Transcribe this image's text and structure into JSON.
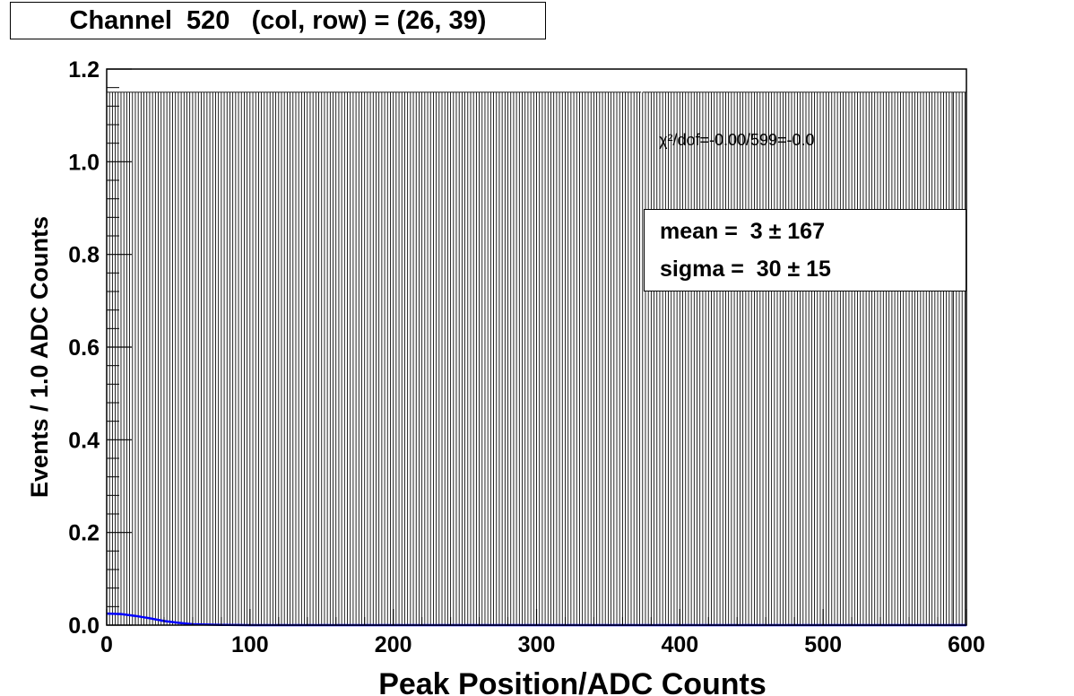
{
  "title": "Channel  520   (col, row) = (26, 39)",
  "chart_data": {
    "type": "bar",
    "xlabel": "Peak Position/ADC Counts",
    "ylabel": "Events / 1.0 ADC Counts",
    "xlim": [
      0,
      600
    ],
    "ylim": [
      0,
      1.2
    ],
    "x_ticks": [
      "0",
      "100",
      "200",
      "300",
      "400",
      "500",
      "600"
    ],
    "y_ticks": [
      "0.0",
      "0.2",
      "0.4",
      "0.6",
      "0.8",
      "1.0",
      "1.2"
    ],
    "bin_width": 1.0,
    "bins": [
      {
        "x_range": [
          0,
          373
        ],
        "value": 1.15
      },
      {
        "x_range": [
          373,
          374
        ],
        "value": 0
      },
      {
        "x_range": [
          374,
          591
        ],
        "value": 1.15
      },
      {
        "x_range": [
          591,
          600
        ],
        "value": 1.15
      }
    ],
    "fit_curve": {
      "color": "#0000ff",
      "points": [
        [
          0,
          0.025
        ],
        [
          10,
          0.024
        ],
        [
          20,
          0.02
        ],
        [
          30,
          0.015
        ],
        [
          40,
          0.009
        ],
        [
          50,
          0.005
        ],
        [
          60,
          0.002
        ],
        [
          80,
          0.0005
        ],
        [
          100,
          0.0
        ],
        [
          600,
          0.0
        ]
      ]
    },
    "chi2_label": "χ²/dof=-0.00/599=-0.0",
    "stats": {
      "mean_line": "mean =  3 ± 167",
      "sigma_line": "sigma =  30 ± 15"
    }
  }
}
